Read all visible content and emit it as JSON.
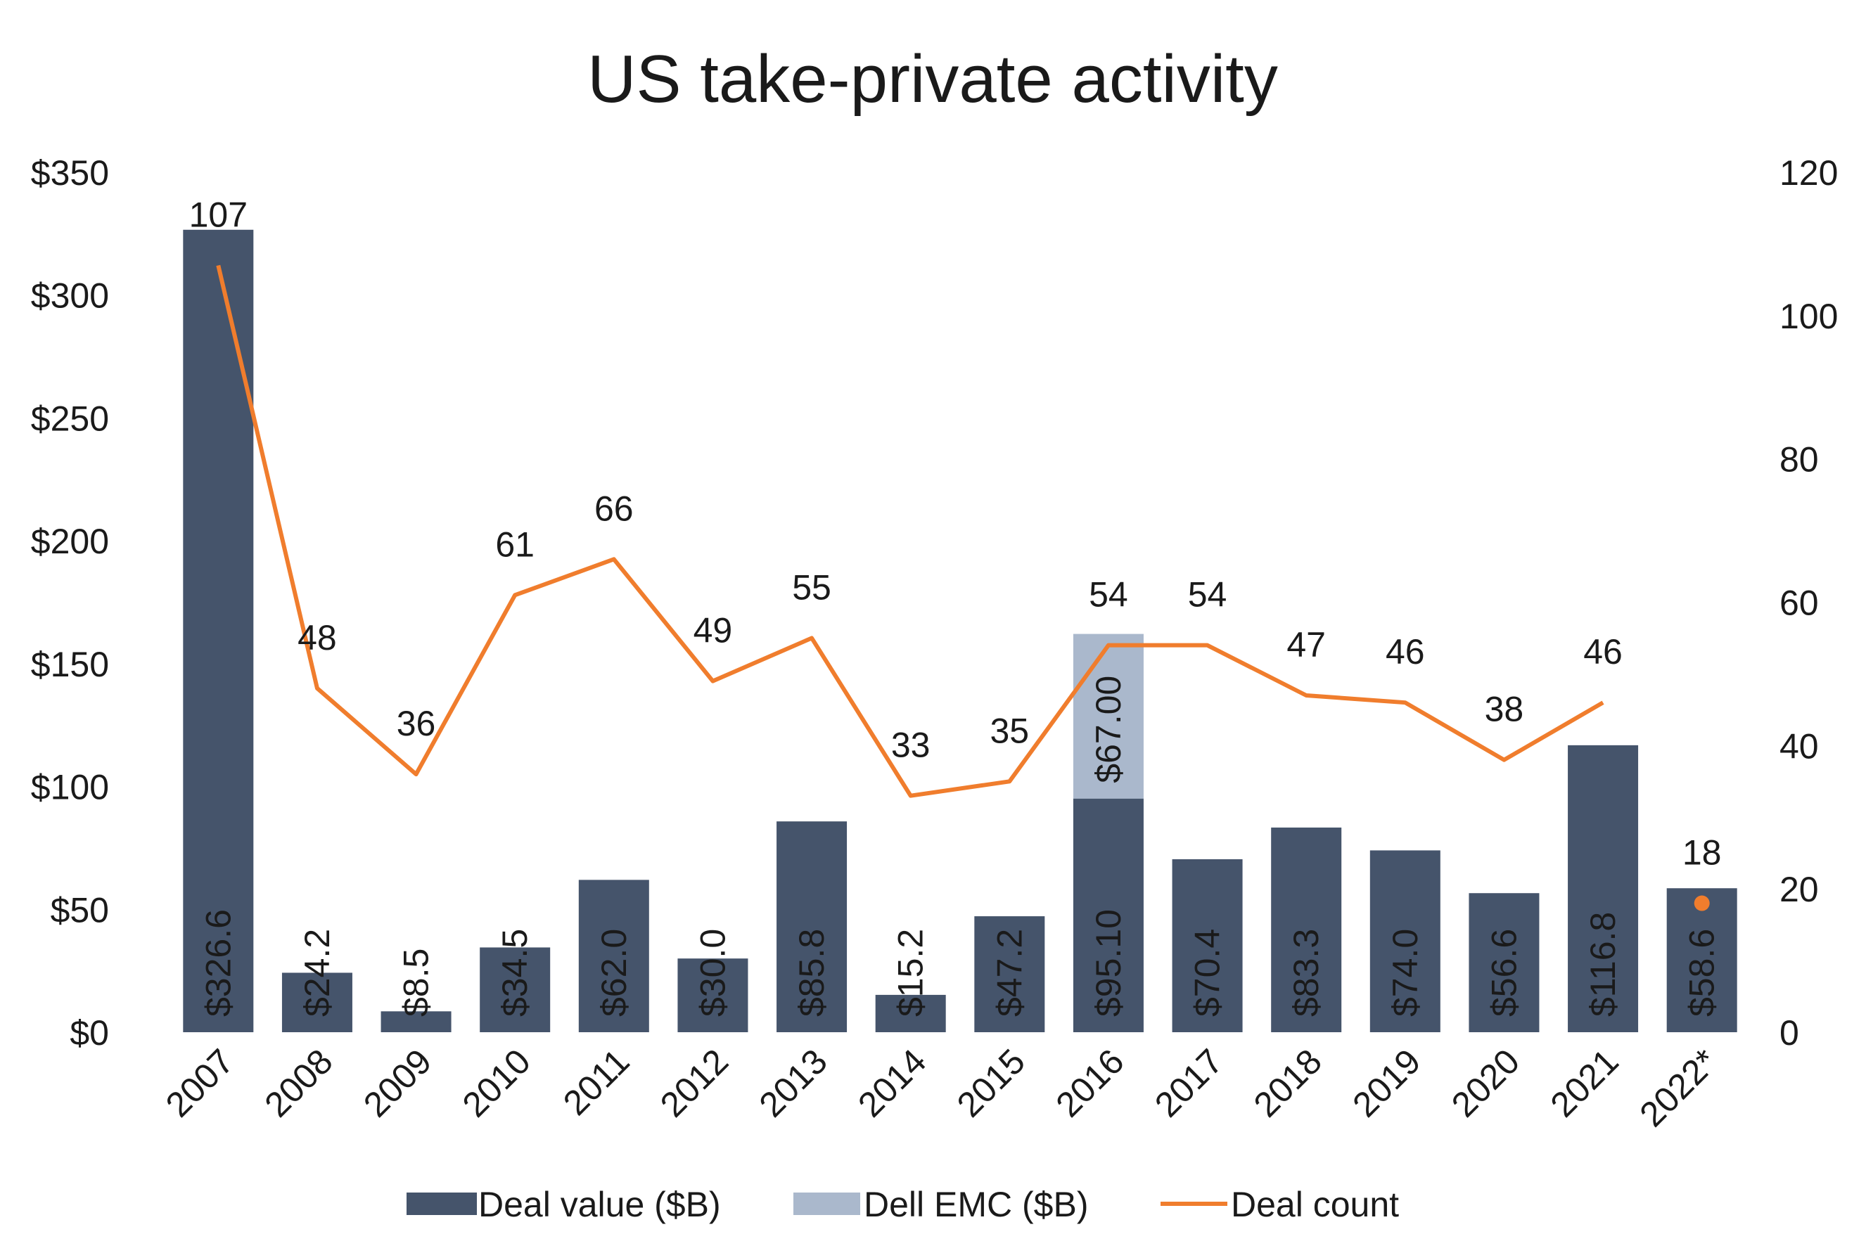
{
  "chart_data": {
    "type": "bar",
    "title": "US take-private activity",
    "categories": [
      "2007",
      "2008",
      "2009",
      "2010",
      "2011",
      "2012",
      "2013",
      "2014",
      "2015",
      "2016",
      "2017",
      "2018",
      "2019",
      "2020",
      "2021",
      "2022*"
    ],
    "series": [
      {
        "name": "Deal value ($B)",
        "type": "bar",
        "axis": "left",
        "color": "#45546b",
        "values": [
          326.6,
          24.2,
          8.5,
          34.5,
          62.0,
          30.0,
          85.8,
          15.2,
          47.2,
          95.1,
          70.4,
          83.3,
          74.0,
          56.6,
          116.8,
          58.6
        ],
        "labels": [
          "$326.6",
          "$24.2",
          "$8.5",
          "$34.5",
          "$62.0",
          "$30.0",
          "$85.8",
          "$15.2",
          "$47.2",
          "$95.10",
          "$70.4",
          "$83.3",
          "$74.0",
          "$56.6",
          "$116.8",
          "$58.6"
        ]
      },
      {
        "name": "Dell EMC ($B)",
        "type": "bar",
        "stacked": true,
        "axis": "left",
        "color": "#aab8cc",
        "values": [
          null,
          null,
          null,
          null,
          null,
          null,
          null,
          null,
          null,
          67.0,
          null,
          null,
          null,
          null,
          null,
          null
        ],
        "labels": [
          "",
          "",
          "",
          "",
          "",
          "",
          "",
          "",
          "",
          "$67.00",
          "",
          "",
          "",
          "",
          "",
          ""
        ]
      },
      {
        "name": "Deal count",
        "type": "line",
        "axis": "right",
        "color": "#f07d2d",
        "values": [
          107,
          48,
          36,
          61,
          66,
          49,
          55,
          33,
          35,
          54,
          54,
          47,
          46,
          38,
          46,
          18
        ],
        "labels": [
          "107",
          "48",
          "36",
          "61",
          "66",
          "49",
          "55",
          "33",
          "35",
          "54",
          "54",
          "47",
          "46",
          "38",
          "46",
          "18"
        ]
      }
    ],
    "y_left": {
      "ylim": [
        0,
        350
      ],
      "ticks": [
        "$0",
        "$50",
        "$100",
        "$150",
        "$200",
        "$250",
        "$300",
        "$350"
      ]
    },
    "y_right": {
      "ylim": [
        0,
        120
      ],
      "ticks": [
        "0",
        "20",
        "40",
        "60",
        "80",
        "100",
        "120"
      ]
    },
    "legend": {
      "position": "bottom"
    },
    "grid": false
  }
}
